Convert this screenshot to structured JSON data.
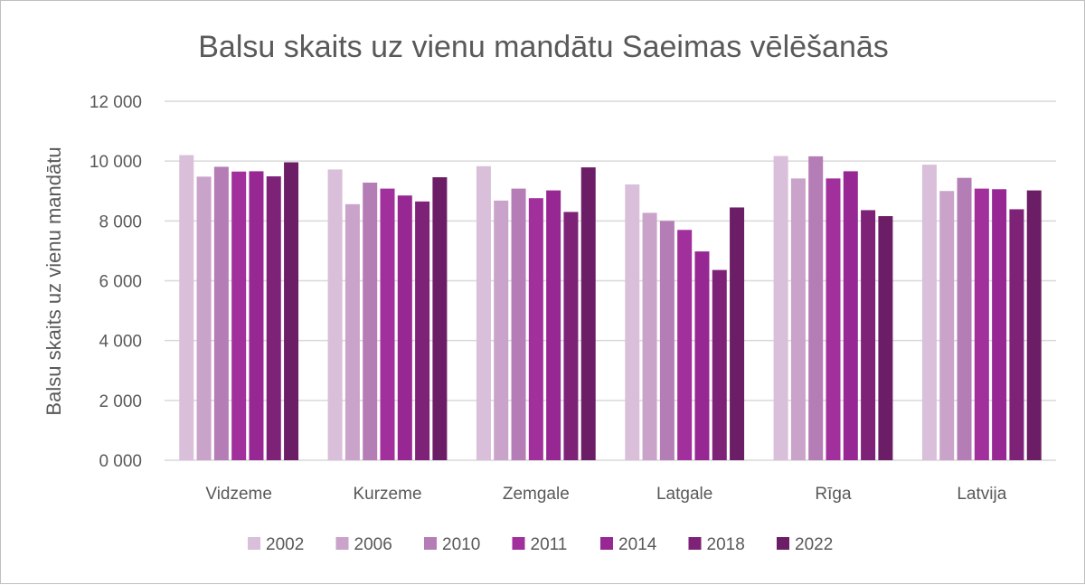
{
  "chart_data": {
    "type": "bar",
    "title": "Balsu skaits uz vienu mandātu Saeimas vēlēšanās",
    "xlabel": "",
    "ylabel": "Balsu skaits uz vienu mandātu",
    "ylim": [
      0,
      12000
    ],
    "yticks": [
      0,
      2000,
      4000,
      6000,
      8000,
      10000,
      12000
    ],
    "ytick_labels": [
      "0 000",
      "2 000",
      "4 000",
      "6 000",
      "8 000",
      "10 000",
      "12 000"
    ],
    "grid": true,
    "legend_position": "bottom",
    "categories": [
      "Vidzeme",
      "Kurzeme",
      "Zemgale",
      "Latgale",
      "Rīga",
      "Latvija"
    ],
    "series": [
      {
        "name": "2002",
        "color": "#d9bfd9",
        "values": [
          10200,
          9720,
          9830,
          9220,
          10170,
          9880
        ]
      },
      {
        "name": "2006",
        "color": "#c9a3c9",
        "values": [
          9480,
          8560,
          8680,
          8270,
          9420,
          9000
        ]
      },
      {
        "name": "2010",
        "color": "#b57db5",
        "values": [
          9810,
          9280,
          9080,
          8000,
          10160,
          9440
        ]
      },
      {
        "name": "2011",
        "color": "#a12f9c",
        "values": [
          9650,
          9080,
          8760,
          7700,
          9420,
          9080
        ]
      },
      {
        "name": "2014",
        "color": "#962793",
        "values": [
          9660,
          8850,
          9020,
          6980,
          9660,
          9060
        ]
      },
      {
        "name": "2018",
        "color": "#7e2278",
        "values": [
          9490,
          8650,
          8300,
          6360,
          8360,
          8390
        ]
      },
      {
        "name": "2022",
        "color": "#6b1e66",
        "values": [
          9960,
          9460,
          9790,
          8450,
          8160,
          9020
        ]
      }
    ]
  }
}
